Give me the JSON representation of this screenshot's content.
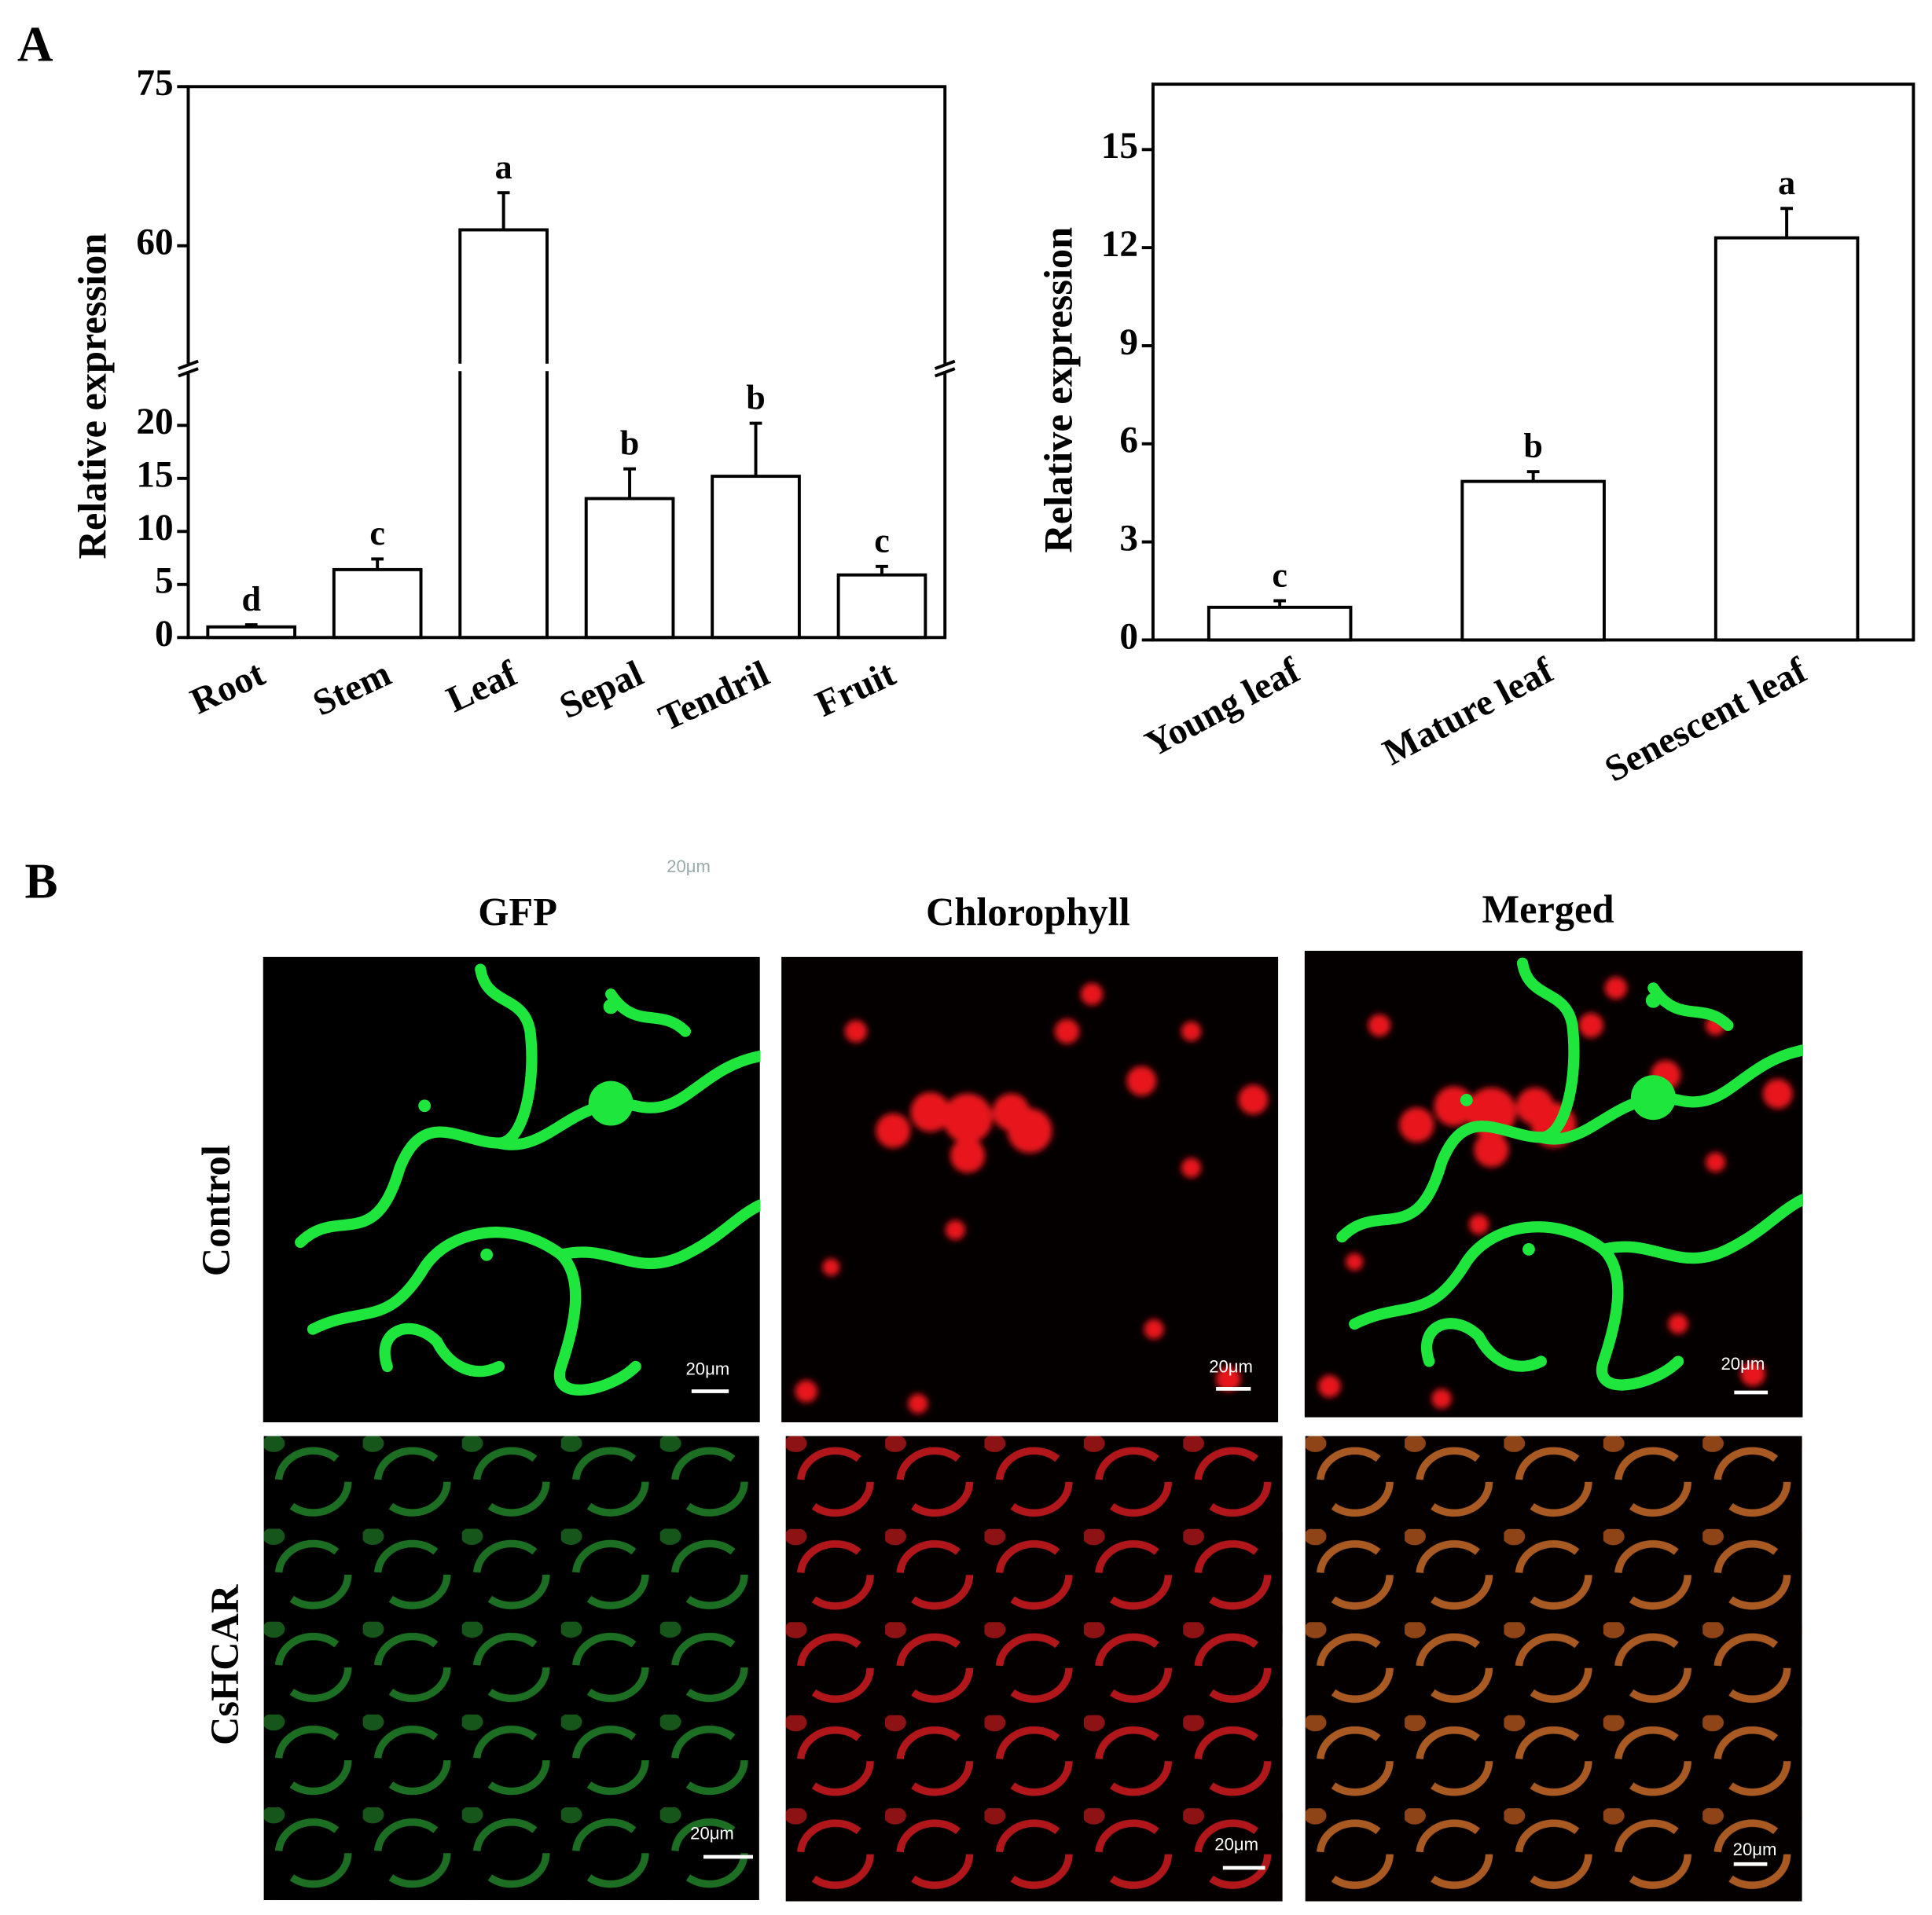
{
  "panel_labels": [
    "A",
    "B"
  ],
  "chart_data": [
    {
      "type": "bar",
      "y_label": "Relative expression",
      "categories": [
        "Root",
        "Stem",
        "Leaf",
        "Sepal",
        "Tendril",
        "Fruit"
      ],
      "values": [
        1.0,
        6.4,
        61.5,
        13.1,
        15.2,
        5.9
      ],
      "errors": [
        0.2,
        1.0,
        3.5,
        2.8,
        5.0,
        0.8
      ],
      "value_annotations": [
        "d",
        "c",
        "a",
        "b",
        "b",
        "c"
      ],
      "ylim": [
        0,
        75
      ],
      "axis_break": [
        25,
        49
      ],
      "yticks": [
        0,
        5,
        10,
        15,
        20,
        60,
        75
      ],
      "color": "#ffffff",
      "edge_color": "#000000"
    },
    {
      "type": "bar",
      "y_label": "Relative expression",
      "categories": [
        "Young leaf",
        "Mature leaf",
        "Senescent leaf"
      ],
      "values": [
        1.0,
        4.85,
        12.3
      ],
      "errors": [
        0.2,
        0.3,
        0.9
      ],
      "value_annotations": [
        "c",
        "b",
        "a"
      ],
      "ylim": [
        0,
        17
      ],
      "yticks": [
        0,
        3,
        6,
        9,
        12,
        15
      ],
      "color": "#ffffff",
      "edge_color": "#000000"
    }
  ],
  "microscopy": {
    "columns": [
      "GFP",
      "Chlorophyll",
      "Merged"
    ],
    "rows": [
      "Control",
      "CsHCAR"
    ],
    "scale_bar": "20μm"
  }
}
